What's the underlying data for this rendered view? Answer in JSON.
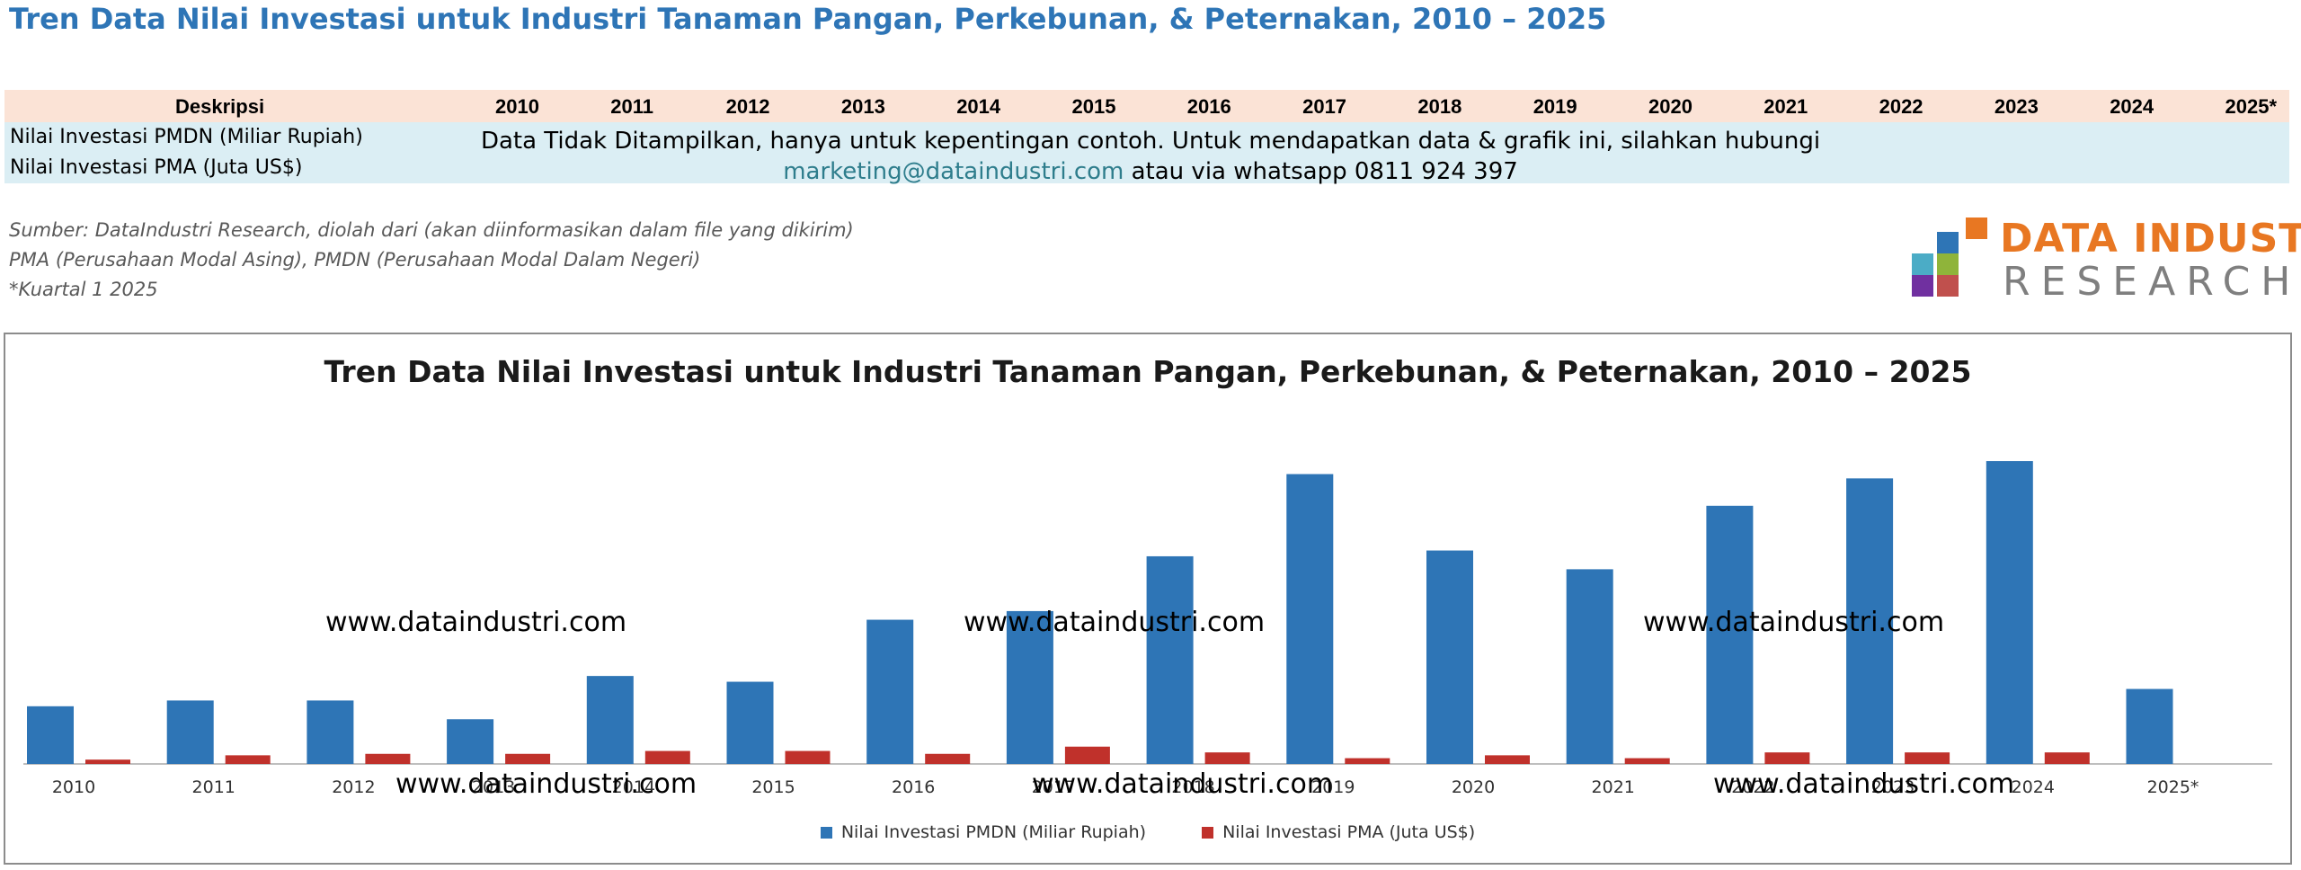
{
  "page": {
    "title": "Tren Data Nilai Investasi untuk Industri Tanaman Pangan, Perkebunan, & Peternakan, 2010 – 2025"
  },
  "table": {
    "header_label": "Deskripsi",
    "years": [
      "2010",
      "2011",
      "2012",
      "2013",
      "2014",
      "2015",
      "2016",
      "2017",
      "2018",
      "2019",
      "2020",
      "2021",
      "2022",
      "2023",
      "2024",
      "2025*"
    ],
    "rows": [
      "Nilai Investasi PMDN (Miliar Rupiah)",
      "Nilai Investasi PMA (Juta US$)"
    ],
    "notice_line1": "Data Tidak Ditampilkan, hanya untuk kepentingan contoh. Untuk mendapatkan data & grafik  ini, silahkan hubungi",
    "notice_email": "marketing@dataindustri.com",
    "notice_line2_rest": " atau via whatsapp 0811 924 397"
  },
  "notes": [
    "Sumber: DataIndustri Research, diolah dari (akan diinformasikan dalam file yang dikirim)",
    "PMA (Perusahaan Modal Asing), PMDN (Perusahaan Modal Dalam Negeri)",
    "*Kuartal 1 2025"
  ],
  "logo": {
    "line1": "DATA INDUSTRI",
    "line2": "RESEARCH",
    "colors": [
      "#e87722",
      "#2e75b6",
      "#8fb43a",
      "#c0504d",
      "#7030a0",
      "#4bacc6"
    ]
  },
  "watermarks": [
    "www.dataindustri.com",
    "www.dataindustri.com",
    "www.dataindustri.com",
    "www.dataindustri.com",
    "www.dataindustri.com",
    "www.dataindustri.com"
  ],
  "chart_data": {
    "type": "bar",
    "title": "Tren Data Nilai Investasi untuk Industri Tanaman Pangan, Perkebunan, & Peternakan, 2010 – 2025",
    "categories": [
      "2010",
      "2011",
      "2012",
      "2013",
      "2014",
      "2015",
      "2016",
      "2017",
      "2018",
      "2019",
      "2020",
      "2021",
      "2022",
      "2023",
      "2024",
      "2025*"
    ],
    "series": [
      {
        "name": "Nilai Investasi PMDN (Miliar Rupiah)",
        "color": "#2e75b6",
        "values": [
          20,
          22,
          22,
          15.5,
          30.5,
          28.5,
          50,
          53,
          72,
          100.5,
          74,
          67.5,
          89.5,
          99,
          105,
          26
        ]
      },
      {
        "name": "Nilai Investasi PMA (Juta US$)",
        "color": "#c0312b",
        "values": [
          1.5,
          3,
          3.5,
          3.5,
          4.5,
          4.5,
          3.5,
          6,
          4,
          2,
          3,
          2,
          4,
          4,
          4,
          0
        ]
      }
    ],
    "ylim": [
      0,
      110
    ],
    "grid": false,
    "legend_position": "bottom"
  }
}
